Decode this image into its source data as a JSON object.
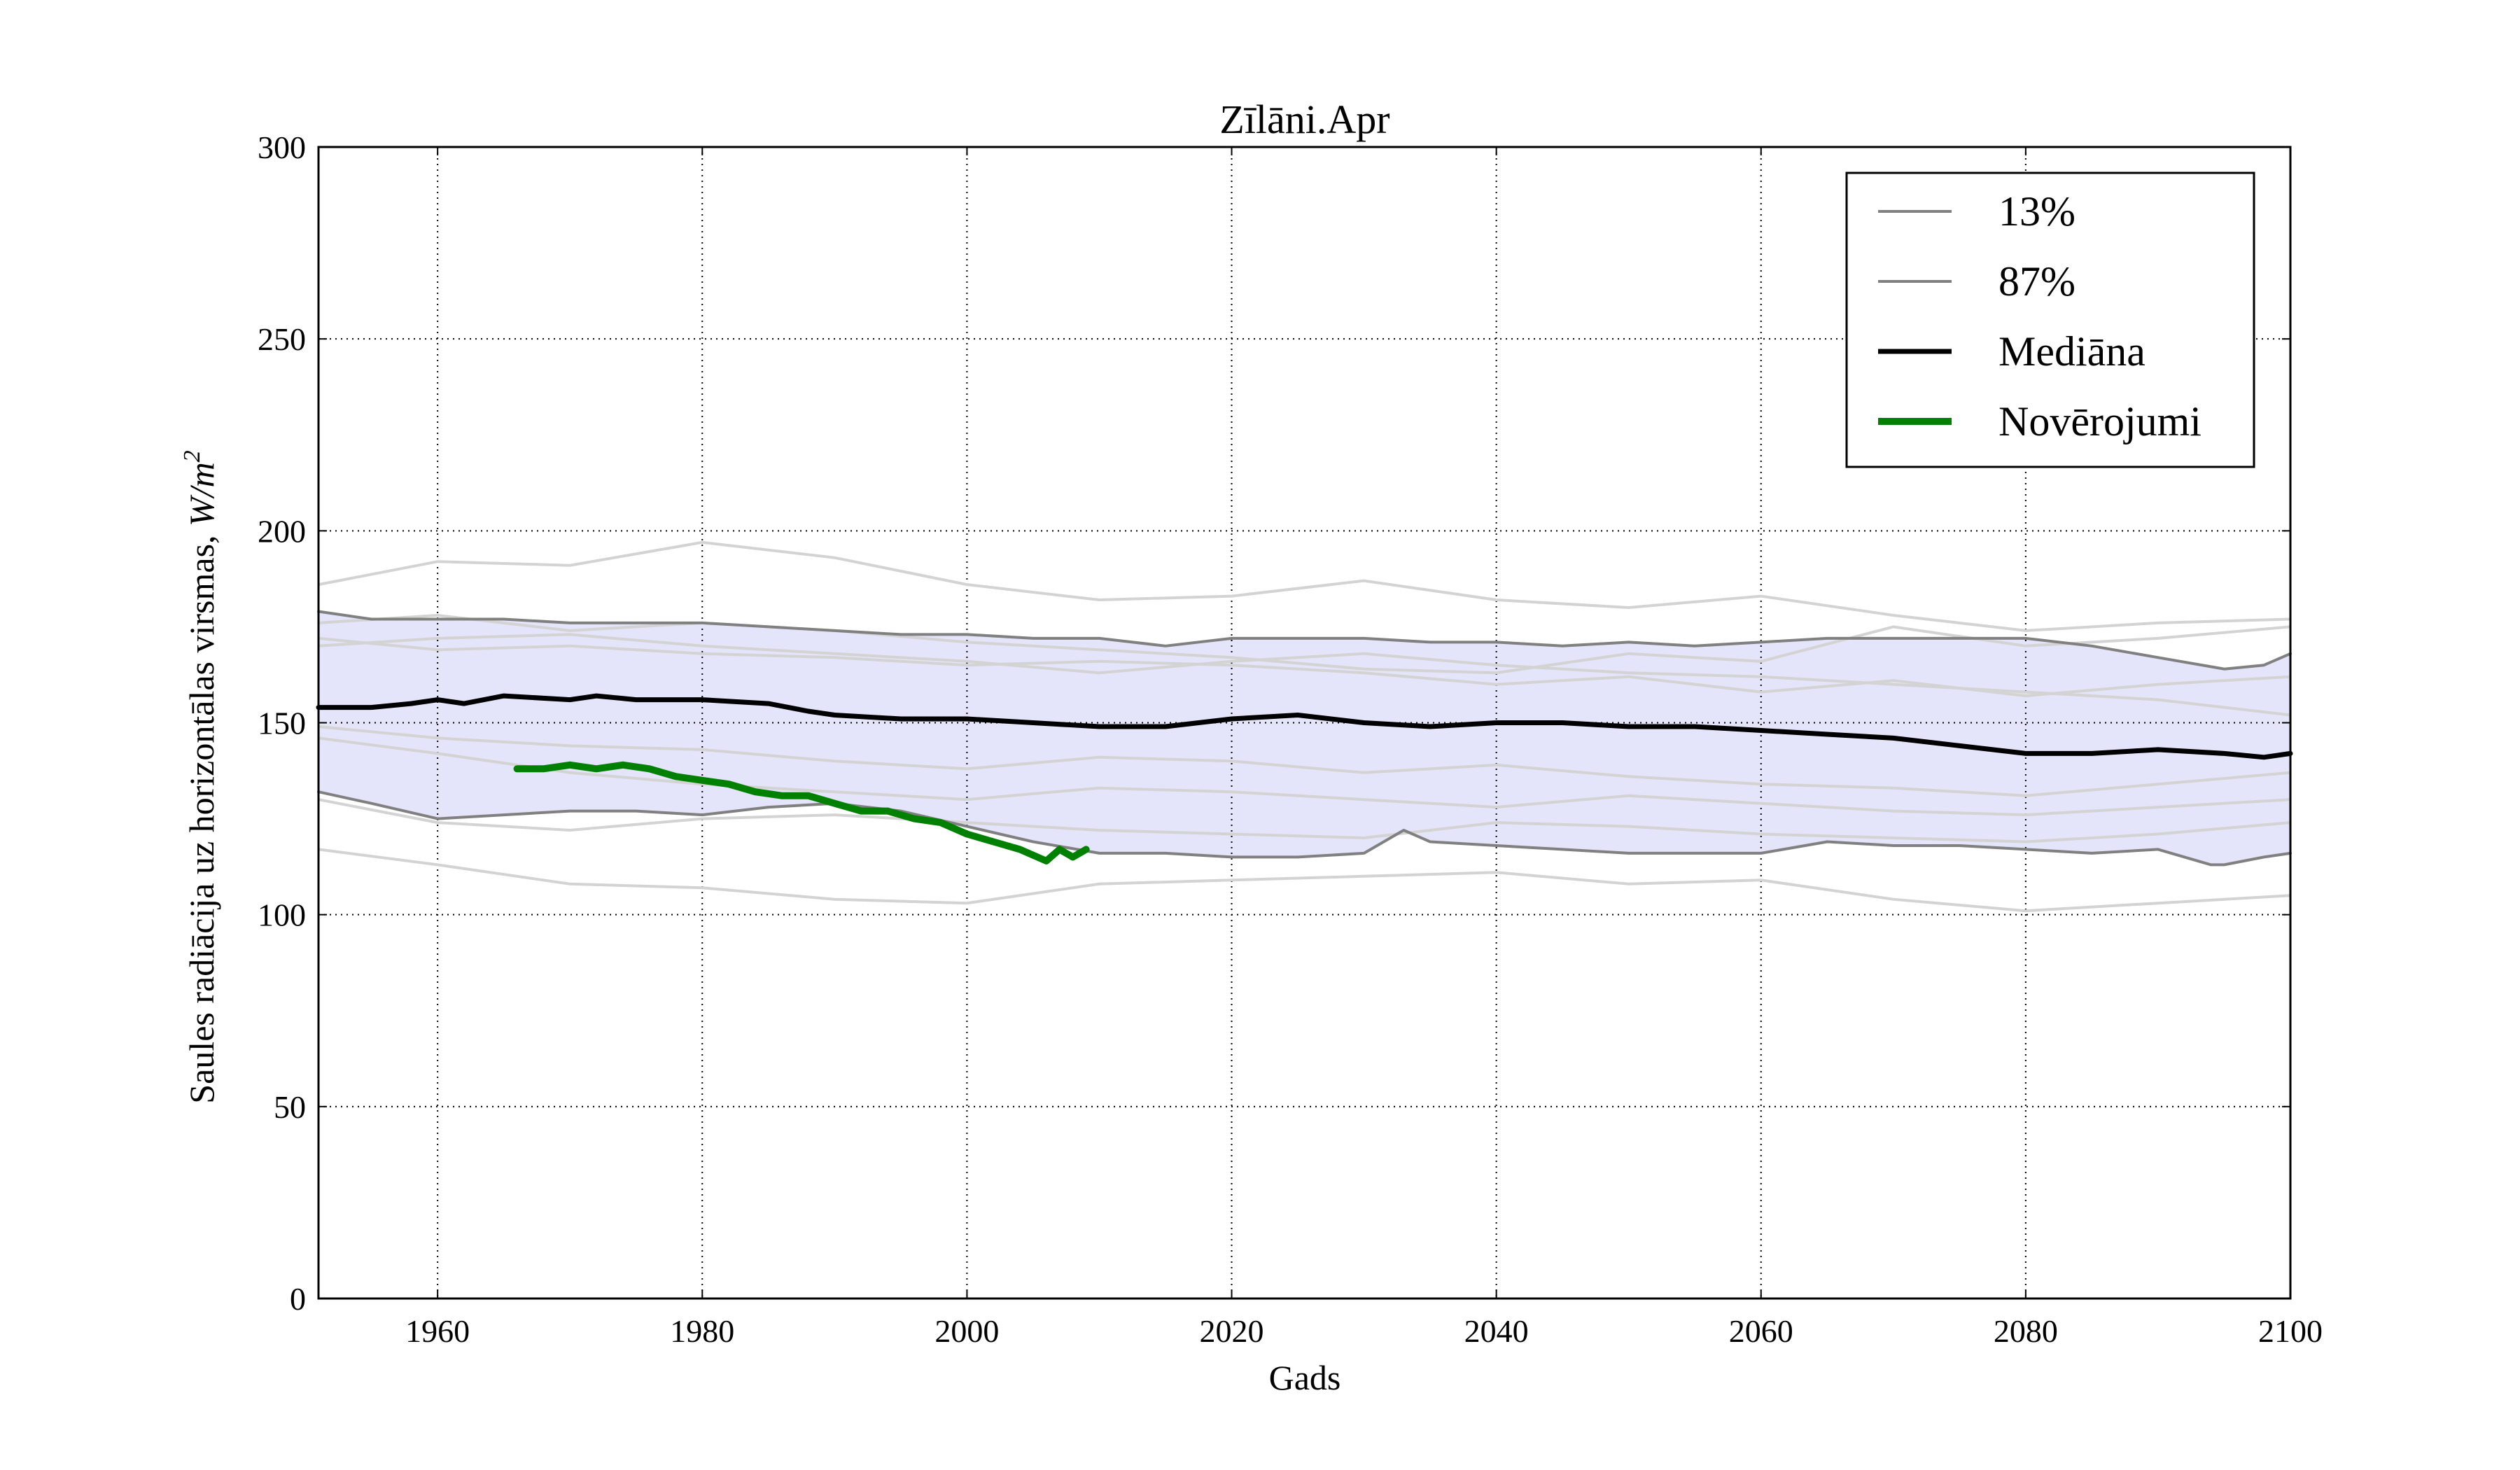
{
  "chart_data": {
    "type": "line",
    "title": "Zīlāni.Apr",
    "xlabel": "Gads",
    "ylabel": "Saules radiācija uz horizontālas virsmas, ",
    "ylabel_unit_main": "W/m",
    "ylabel_unit_exp": "2",
    "xlim": [
      1951,
      2100
    ],
    "ylim": [
      0,
      300
    ],
    "x_ticks": [
      1960,
      1980,
      2000,
      2020,
      2040,
      2060,
      2080,
      2100
    ],
    "y_ticks": [
      0,
      50,
      100,
      150,
      200,
      250,
      300
    ],
    "grid": true,
    "legend_position": "top-right",
    "colors": {
      "band_fill": "#e4e4fb",
      "ensemble": "#d3d3d3",
      "percentile": "#808080",
      "median": "#000000",
      "observations": "#008000"
    },
    "series": [
      {
        "name": "13%",
        "role": "percentile",
        "x": [
          1951,
          1955,
          1960,
          1965,
          1970,
          1975,
          1980,
          1985,
          1990,
          1995,
          2000,
          2005,
          2010,
          2015,
          2020,
          2025,
          2030,
          2033,
          2035,
          2040,
          2045,
          2050,
          2055,
          2060,
          2065,
          2070,
          2075,
          2080,
          2085,
          2090,
          2094,
          2095,
          2098,
          2100
        ],
        "y": [
          132,
          129,
          125,
          126,
          127,
          127,
          126,
          128,
          129,
          127,
          123,
          119,
          116,
          116,
          115,
          115,
          116,
          122,
          119,
          118,
          117,
          116,
          116,
          116,
          119,
          118,
          118,
          117,
          116,
          117,
          113,
          113,
          115,
          116
        ]
      },
      {
        "name": "87%",
        "role": "percentile",
        "x": [
          1951,
          1955,
          1960,
          1965,
          1970,
          1975,
          1980,
          1985,
          1990,
          1995,
          2000,
          2005,
          2010,
          2015,
          2020,
          2025,
          2030,
          2035,
          2040,
          2045,
          2050,
          2055,
          2060,
          2065,
          2070,
          2075,
          2080,
          2085,
          2090,
          2095,
          2098,
          2100
        ],
        "y": [
          179,
          177,
          177,
          177,
          176,
          176,
          176,
          175,
          174,
          173,
          173,
          172,
          172,
          170,
          172,
          172,
          172,
          171,
          171,
          170,
          171,
          170,
          171,
          172,
          172,
          172,
          172,
          170,
          167,
          164,
          165,
          168
        ]
      },
      {
        "name": "Mediāna",
        "role": "median",
        "x": [
          1951,
          1955,
          1958,
          1960,
          1962,
          1965,
          1970,
          1972,
          1975,
          1980,
          1985,
          1988,
          1990,
          1995,
          2000,
          2005,
          2010,
          2015,
          2020,
          2025,
          2030,
          2035,
          2040,
          2045,
          2050,
          2055,
          2060,
          2065,
          2070,
          2075,
          2080,
          2085,
          2090,
          2095,
          2098,
          2100
        ],
        "y": [
          154,
          154,
          155,
          156,
          155,
          157,
          156,
          157,
          156,
          156,
          155,
          153,
          152,
          151,
          151,
          150,
          149,
          149,
          151,
          152,
          150,
          149,
          150,
          150,
          149,
          149,
          148,
          147,
          146,
          144,
          142,
          142,
          143,
          142,
          141,
          142
        ]
      },
      {
        "name": "Novērojumi",
        "role": "observations",
        "x": [
          1966,
          1968,
          1970,
          1972,
          1974,
          1976,
          1978,
          1980,
          1982,
          1984,
          1986,
          1988,
          1990,
          1992,
          1994,
          1996,
          1998,
          2000,
          2002,
          2004,
          2006,
          2007,
          2008,
          2009
        ],
        "y": [
          138,
          138,
          139,
          138,
          139,
          138,
          136,
          135,
          134,
          132,
          131,
          131,
          129,
          127,
          127,
          125,
          124,
          121,
          119,
          117,
          114,
          117,
          115,
          117
        ]
      }
    ],
    "ensemble_members": [
      {
        "x": [
          1951,
          1960,
          1970,
          1980,
          1990,
          2000,
          2010,
          2020,
          2030,
          2040,
          2050,
          2060,
          2070,
          2080,
          2090,
          2100
        ],
        "y": [
          186,
          192,
          191,
          197,
          193,
          186,
          182,
          183,
          187,
          182,
          180,
          183,
          178,
          174,
          176,
          177
        ]
      },
      {
        "x": [
          1951,
          1960,
          1970,
          1980,
          1990,
          2000,
          2010,
          2020,
          2030,
          2040,
          2050,
          2060,
          2070,
          2080,
          2090,
          2100
        ],
        "y": [
          176,
          178,
          174,
          176,
          174,
          171,
          169,
          167,
          164,
          163,
          168,
          166,
          175,
          170,
          172,
          175
        ]
      },
      {
        "x": [
          1951,
          1960,
          1970,
          1980,
          1990,
          2000,
          2010,
          2020,
          2030,
          2040,
          2050,
          2060,
          2070,
          2080,
          2090,
          2100
        ],
        "y": [
          172,
          169,
          170,
          168,
          167,
          165,
          166,
          165,
          163,
          160,
          162,
          158,
          161,
          157,
          160,
          162
        ]
      },
      {
        "x": [
          1951,
          1960,
          1970,
          1980,
          1990,
          2000,
          2010,
          2020,
          2030,
          2040,
          2050,
          2060,
          2070,
          2080,
          2090,
          2100
        ],
        "y": [
          170,
          172,
          173,
          170,
          168,
          166,
          163,
          166,
          168,
          165,
          163,
          162,
          160,
          158,
          156,
          152
        ]
      },
      {
        "x": [
          1951,
          1960,
          1970,
          1980,
          1990,
          2000,
          2010,
          2020,
          2030,
          2040,
          2050,
          2060,
          2070,
          2080,
          2090,
          2100
        ],
        "y": [
          149,
          146,
          144,
          143,
          140,
          138,
          141,
          140,
          137,
          139,
          136,
          134,
          133,
          131,
          134,
          137
        ]
      },
      {
        "x": [
          1951,
          1960,
          1970,
          1980,
          1990,
          2000,
          2010,
          2020,
          2030,
          2040,
          2050,
          2060,
          2070,
          2080,
          2090,
          2100
        ],
        "y": [
          146,
          142,
          137,
          134,
          132,
          130,
          133,
          132,
          130,
          128,
          131,
          129,
          127,
          126,
          128,
          130
        ]
      },
      {
        "x": [
          1951,
          1960,
          1970,
          1980,
          1990,
          2000,
          2010,
          2020,
          2030,
          2040,
          2050,
          2060,
          2070,
          2080,
          2090,
          2100
        ],
        "y": [
          130,
          124,
          122,
          125,
          126,
          124,
          122,
          121,
          120,
          124,
          123,
          121,
          120,
          119,
          121,
          124
        ]
      },
      {
        "x": [
          1951,
          1960,
          1970,
          1980,
          1990,
          2000,
          2010,
          2020,
          2030,
          2040,
          2050,
          2060,
          2070,
          2080,
          2090,
          2100
        ],
        "y": [
          117,
          113,
          108,
          107,
          104,
          103,
          108,
          109,
          110,
          111,
          108,
          109,
          104,
          101,
          103,
          105
        ]
      }
    ]
  }
}
